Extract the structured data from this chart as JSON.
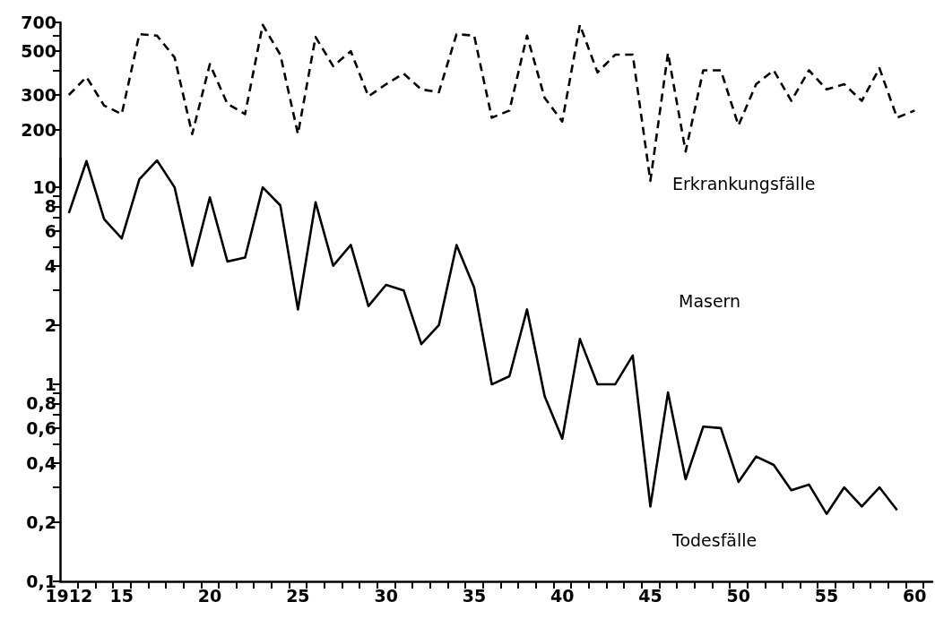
{
  "chart_data": [
    {
      "type": "line",
      "xlim": [
        1911.5,
        1961
      ],
      "ylim": [
        100,
        700
      ],
      "log": true,
      "tick_labels": "y",
      "grid": false,
      "line_style": "dashed",
      "marker": "none",
      "yticks": [
        200,
        300,
        {
          "value": 400,
          "label": null
        },
        500,
        {
          "value": 600,
          "label": null
        },
        700
      ],
      "x": [
        1912,
        1913,
        1914,
        1915,
        1916,
        1917,
        1918,
        1919,
        1920,
        1921,
        1922,
        1923,
        1924,
        1925,
        1926,
        1927,
        1928,
        1929,
        1930,
        1931,
        1932,
        1933,
        1934,
        1935,
        1936,
        1937,
        1938,
        1939,
        1940,
        1941,
        1942,
        1943,
        1944,
        1945,
        1946,
        1947,
        1948,
        1949,
        1950,
        1951,
        1952,
        1953,
        1954,
        1955,
        1956,
        1957,
        1958,
        1959,
        1960
      ],
      "series": [
        {
          "name": "Erkrankungsfälle",
          "color": "#000000",
          "values": [
            300,
            370,
            265,
            240,
            610,
            600,
            465,
            190,
            430,
            270,
            240,
            680,
            480,
            190,
            590,
            420,
            500,
            295,
            340,
            385,
            320,
            310,
            610,
            600,
            230,
            250,
            600,
            290,
            220,
            680,
            390,
            480,
            480,
            110,
            490,
            155,
            400,
            400,
            210,
            340,
            400,
            280,
            400,
            320,
            340,
            280,
            410,
            230,
            250
          ]
        }
      ]
    },
    {
      "type": "line",
      "xlim": [
        1911.5,
        1961
      ],
      "ylim": [
        0.1,
        14
      ],
      "log": true,
      "grid": false,
      "line_style": "solid",
      "marker": "none",
      "annotations": [
        "Masern"
      ],
      "yticks": [
        10,
        {
          "value": 9,
          "label": null
        },
        8,
        {
          "value": 7,
          "label": null
        },
        6,
        {
          "value": 5,
          "label": null
        },
        4,
        {
          "value": 3,
          "label": null
        },
        2,
        1,
        {
          "value": 0.9,
          "label": null
        },
        {
          "value": 0.8,
          "label": "0,8"
        },
        {
          "value": 0.7,
          "label": null
        },
        {
          "value": 0.6,
          "label": "0,6"
        },
        {
          "value": 0.5,
          "label": null
        },
        {
          "value": 0.4,
          "label": "0,4"
        },
        {
          "value": 0.3,
          "label": null
        },
        {
          "value": 0.2,
          "label": "0,2"
        },
        {
          "value": 0.1,
          "label": "0,1"
        }
      ],
      "xticks": [
        1912,
        {
          "value": 1915,
          "label": "15"
        },
        {
          "value": 1920,
          "label": "20"
        },
        {
          "value": 1925,
          "label": "25"
        },
        {
          "value": 1930,
          "label": "30"
        },
        {
          "value": 1935,
          "label": "35"
        },
        {
          "value": 1940,
          "label": "40"
        },
        {
          "value": 1945,
          "label": "45"
        },
        {
          "value": 1950,
          "label": "50"
        },
        {
          "value": 1955,
          "label": "55"
        },
        {
          "value": 1960,
          "label": "60"
        },
        {
          "value": 1912.5,
          "label": null
        },
        {
          "value": 1913.5,
          "label": null
        },
        {
          "value": 1914.5,
          "label": null
        },
        {
          "value": 1915.5,
          "label": null
        },
        {
          "value": 1916.5,
          "label": null
        },
        {
          "value": 1917.5,
          "label": null
        },
        {
          "value": 1918.5,
          "label": null
        },
        {
          "value": 1919.5,
          "label": null
        },
        {
          "value": 1920.5,
          "label": null
        },
        {
          "value": 1921.5,
          "label": null
        },
        {
          "value": 1922.5,
          "label": null
        },
        {
          "value": 1923.5,
          "label": null
        },
        {
          "value": 1924.5,
          "label": null
        },
        {
          "value": 1925.5,
          "label": null
        },
        {
          "value": 1926.5,
          "label": null
        },
        {
          "value": 1927.5,
          "label": null
        },
        {
          "value": 1928.5,
          "label": null
        },
        {
          "value": 1929.5,
          "label": null
        },
        {
          "value": 1930.5,
          "label": null
        },
        {
          "value": 1931.5,
          "label": null
        },
        {
          "value": 1932.5,
          "label": null
        },
        {
          "value": 1933.5,
          "label": null
        },
        {
          "value": 1934.5,
          "label": null
        },
        {
          "value": 1935.5,
          "label": null
        },
        {
          "value": 1936.5,
          "label": null
        },
        {
          "value": 1937.5,
          "label": null
        },
        {
          "value": 1938.5,
          "label": null
        },
        {
          "value": 1939.5,
          "label": null
        },
        {
          "value": 1940.5,
          "label": null
        },
        {
          "value": 1941.5,
          "label": null
        },
        {
          "value": 1942.5,
          "label": null
        },
        {
          "value": 1943.5,
          "label": null
        },
        {
          "value": 1944.5,
          "label": null
        },
        {
          "value": 1945.5,
          "label": null
        },
        {
          "value": 1946.5,
          "label": null
        },
        {
          "value": 1947.5,
          "label": null
        },
        {
          "value": 1948.5,
          "label": null
        },
        {
          "value": 1949.5,
          "label": null
        },
        {
          "value": 1950.5,
          "label": null
        },
        {
          "value": 1951.5,
          "label": null
        },
        {
          "value": 1952.5,
          "label": null
        },
        {
          "value": 1953.5,
          "label": null
        },
        {
          "value": 1954.5,
          "label": null
        },
        {
          "value": 1955.5,
          "label": null
        },
        {
          "value": 1956.5,
          "label": null
        },
        {
          "value": 1957.5,
          "label": null
        },
        {
          "value": 1958.5,
          "label": null
        },
        {
          "value": 1959.5,
          "label": null
        },
        {
          "value": 1960.5,
          "label": null
        }
      ],
      "x": [
        1912,
        1913,
        1914,
        1915,
        1916,
        1917,
        1918,
        1919,
        1920,
        1921,
        1922,
        1923,
        1924,
        1925,
        1926,
        1927,
        1928,
        1929,
        1930,
        1931,
        1932,
        1933,
        1934,
        1935,
        1936,
        1937,
        1938,
        1939,
        1940,
        1941,
        1942,
        1943,
        1944,
        1945,
        1946,
        1947,
        1948,
        1949,
        1950,
        1951,
        1952,
        1953,
        1954,
        1955,
        1956,
        1957,
        1958,
        1959
      ],
      "series": [
        {
          "name": "Todesfälle",
          "color": "#000000",
          "values": [
            7.4,
            13.6,
            6.9,
            5.5,
            11,
            13.7,
            10,
            4.0,
            8.9,
            4.2,
            4.4,
            10,
            8.1,
            2.4,
            8.4,
            4.0,
            5.1,
            2.5,
            3.2,
            3.0,
            1.6,
            2.0,
            5.1,
            3.1,
            1.0,
            1.1,
            2.4,
            0.87,
            0.53,
            1.7,
            1.0,
            1.0,
            1.4,
            0.24,
            0.91,
            0.33,
            0.61,
            0.6,
            0.32,
            0.43,
            0.39,
            0.29,
            0.31,
            0.22,
            0.3,
            0.24,
            0.3,
            0.23
          ]
        }
      ]
    }
  ]
}
